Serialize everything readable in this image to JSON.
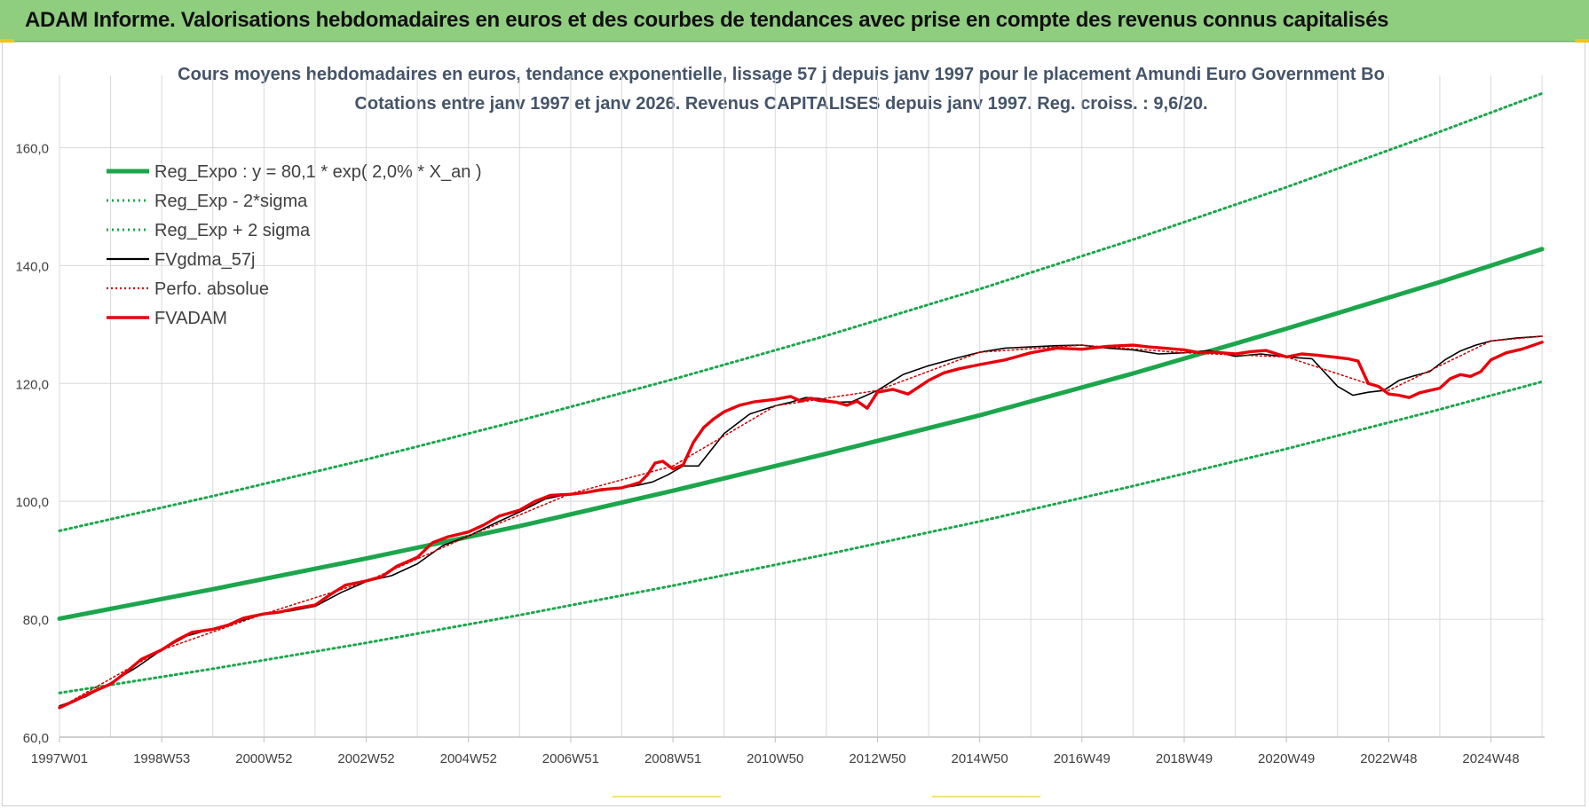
{
  "banner": {
    "title": "ADAM Informe. Valorisations hebdomadaires en euros et des courbes de tendances avec prise en compte des revenus connus capitalisés"
  },
  "colors": {
    "banner_bg": "#8fce7f",
    "reg_expo": "#1ca64c",
    "reg_bands": "#1ca64c",
    "fvgdma": "#000000",
    "perfo": "#d00000",
    "fvadam": "#e8000b",
    "grid": "#d9d9d9"
  },
  "chart_data": {
    "type": "line",
    "title": "Cours moyens hebdomadaires en euros, tendance exponentielle, lissage 57 j depuis janv 1997  pour le placement Amundi Euro Government Bo",
    "subtitle": "Cotations entre janv 1997 et janv 2026. Revenus CAPITALISES depuis janv 1997. Reg. croiss. : 9,6/20.",
    "xlabel": "",
    "ylabel": "",
    "ylim": [
      60,
      170
    ],
    "xlim": [
      1997.0,
      2026.05
    ],
    "y_ticks": [
      60,
      80,
      100,
      120,
      140,
      160
    ],
    "y_tick_labels": [
      "60,0",
      "80,0",
      "100,0",
      "120,0",
      "140,0",
      "160,0"
    ],
    "x_ticks": [
      1997.0,
      1999.0,
      2001.0,
      2003.0,
      2005.0,
      2007.0,
      2009.0,
      2011.0,
      2013.0,
      2015.0,
      2017.0,
      2019.0,
      2021.0,
      2023.0,
      2025.0
    ],
    "x_tick_labels": [
      "1997W01",
      "1998W53",
      "2000W52",
      "2002W52",
      "2004W52",
      "2006W51",
      "2008W51",
      "2010W50",
      "2012W50",
      "2014W50",
      "2016W49",
      "2018W49",
      "2020W49",
      "2022W48",
      "2024W48"
    ],
    "grid": true,
    "legend_position": "top-left",
    "series": [
      {
        "name": "Reg_Expo : y = 80,1 * exp( 2,0% *  X_an )",
        "style": "solid-thick",
        "x": [
          1997.0,
          2000.0,
          2003.0,
          2006.0,
          2009.0,
          2012.0,
          2015.0,
          2018.0,
          2021.0,
          2024.0,
          2026.0
        ],
        "values": [
          80.1,
          85.1,
          90.3,
          95.8,
          101.8,
          108.1,
          114.6,
          121.7,
          129.3,
          137.2,
          142.8
        ]
      },
      {
        "name": "Reg_Exp - 2*sigma",
        "style": "dotted",
        "x": [
          1997.0,
          2000.0,
          2003.0,
          2006.0,
          2009.0,
          2012.0,
          2015.0,
          2018.0,
          2021.0,
          2024.0,
          2026.0
        ],
        "values": [
          67.5,
          71.6,
          76.0,
          80.7,
          85.7,
          91.0,
          96.6,
          102.6,
          108.9,
          115.6,
          120.3
        ]
      },
      {
        "name": "Reg_Exp + 2 sigma",
        "style": "dotted",
        "x": [
          1997.0,
          2000.0,
          2003.0,
          2006.0,
          2009.0,
          2012.0,
          2015.0,
          2018.0,
          2021.0,
          2024.0,
          2026.0
        ],
        "values": [
          95.0,
          100.9,
          107.1,
          113.7,
          120.7,
          128.1,
          136.0,
          144.4,
          153.3,
          162.7,
          169.2
        ]
      },
      {
        "name": "FVgdma_57j",
        "style": "solid-thin",
        "x": [
          1997.0,
          1997.5,
          1998.0,
          1998.5,
          1999.0,
          1999.5,
          2000.0,
          2000.5,
          2001.0,
          2001.5,
          2002.0,
          2002.5,
          2003.0,
          2003.5,
          2004.0,
          2004.5,
          2005.0,
          2005.5,
          2006.0,
          2006.5,
          2007.0,
          2007.5,
          2008.0,
          2008.3,
          2008.6,
          2008.9,
          2009.2,
          2009.5,
          2010.0,
          2010.5,
          2011.0,
          2011.3,
          2011.6,
          2011.9,
          2012.2,
          2012.5,
          2013.0,
          2013.5,
          2014.0,
          2014.5,
          2015.0,
          2015.5,
          2016.0,
          2016.5,
          2017.0,
          2017.5,
          2018.0,
          2018.5,
          2019.0,
          2019.5,
          2020.0,
          2020.5,
          2021.0,
          2021.5,
          2022.0,
          2022.3,
          2022.6,
          2022.9,
          2023.2,
          2023.5,
          2023.8,
          2024.1,
          2024.4,
          2024.7,
          2025.0,
          2025.5,
          2026.0
        ],
        "values": [
          65.3,
          66.8,
          69.2,
          71.8,
          74.8,
          77.2,
          78.4,
          79.6,
          80.9,
          81.4,
          82.2,
          84.5,
          86.4,
          87.4,
          89.4,
          92.5,
          94.1,
          96.2,
          98.2,
          100.4,
          101.3,
          101.7,
          102.3,
          102.7,
          103.3,
          104.5,
          106.0,
          106.0,
          111.5,
          114.8,
          116.2,
          116.8,
          117.6,
          117.4,
          116.8,
          116.9,
          118.8,
          121.5,
          123.0,
          124.2,
          125.3,
          126.0,
          126.2,
          126.4,
          126.5,
          126.0,
          125.7,
          125.0,
          125.2,
          125.6,
          124.6,
          125.0,
          124.5,
          124.2,
          119.5,
          118.0,
          118.5,
          118.8,
          120.5,
          121.3,
          122.0,
          124.0,
          125.5,
          126.5,
          127.2,
          127.7,
          128.0
        ]
      },
      {
        "name": "Perfo. absolue",
        "style": "dotted-thin",
        "x": [
          1997.0,
          1999.0,
          2001.0,
          2003.0,
          2005.0,
          2007.0,
          2009.0,
          2011.0,
          2013.0,
          2015.0,
          2017.0,
          2019.0,
          2021.0,
          2023.0,
          2025.0,
          2026.0
        ],
        "values": [
          65.0,
          74.8,
          80.9,
          86.4,
          94.1,
          101.3,
          106.0,
          116.2,
          118.8,
          125.3,
          126.5,
          125.2,
          124.5,
          118.8,
          127.2,
          128.0
        ]
      },
      {
        "name": "FVADAM",
        "style": "solid-thick",
        "x": [
          1997.0,
          1997.3,
          1997.6,
          1998.0,
          1998.3,
          1998.6,
          1999.0,
          1999.3,
          1999.6,
          2000.0,
          2000.3,
          2000.6,
          2001.0,
          2001.3,
          2001.6,
          2002.0,
          2002.3,
          2002.6,
          2003.0,
          2003.3,
          2003.6,
          2004.0,
          2004.3,
          2004.6,
          2005.0,
          2005.3,
          2005.6,
          2006.0,
          2006.3,
          2006.6,
          2007.0,
          2007.3,
          2007.6,
          2008.0,
          2008.2,
          2008.35,
          2008.5,
          2008.65,
          2008.8,
          2009.0,
          2009.2,
          2009.4,
          2009.6,
          2009.8,
          2010.0,
          2010.3,
          2010.6,
          2011.0,
          2011.3,
          2011.5,
          2011.7,
          2011.85,
          2012.0,
          2012.2,
          2012.4,
          2012.6,
          2012.8,
          2013.0,
          2013.3,
          2013.6,
          2014.0,
          2014.3,
          2014.6,
          2015.0,
          2015.5,
          2016.0,
          2016.5,
          2017.0,
          2017.5,
          2018.0,
          2018.3,
          2018.6,
          2019.0,
          2019.3,
          2019.6,
          2020.0,
          2020.3,
          2020.6,
          2021.0,
          2021.3,
          2021.6,
          2022.0,
          2022.2,
          2022.4,
          2022.6,
          2022.8,
          2023.0,
          2023.2,
          2023.4,
          2023.6,
          2023.8,
          2024.0,
          2024.2,
          2024.4,
          2024.6,
          2024.8,
          2025.0,
          2025.3,
          2025.6,
          2026.0
        ],
        "values": [
          65.0,
          66.2,
          67.5,
          69.0,
          71.0,
          73.2,
          74.8,
          76.5,
          77.8,
          78.3,
          79.0,
          80.2,
          80.9,
          81.2,
          81.8,
          82.4,
          84.2,
          85.8,
          86.5,
          87.2,
          89.0,
          90.5,
          93.0,
          94.0,
          94.8,
          96.0,
          97.5,
          98.5,
          100.0,
          101.0,
          101.2,
          101.5,
          102.0,
          102.3,
          102.8,
          103.2,
          104.5,
          106.5,
          106.8,
          105.5,
          106.2,
          110.0,
          112.5,
          114.0,
          115.2,
          116.3,
          116.9,
          117.3,
          117.8,
          117.0,
          117.5,
          117.1,
          117.0,
          116.8,
          116.3,
          117.0,
          115.8,
          118.5,
          119.0,
          118.2,
          120.5,
          121.8,
          122.5,
          123.2,
          124.0,
          125.2,
          126.0,
          125.8,
          126.3,
          126.5,
          126.2,
          126.0,
          125.7,
          125.2,
          125.3,
          125.0,
          125.4,
          125.6,
          124.5,
          125.0,
          124.8,
          124.4,
          124.2,
          123.8,
          120.0,
          119.5,
          118.2,
          118.0,
          117.6,
          118.4,
          118.8,
          119.2,
          120.8,
          121.5,
          121.2,
          122.0,
          124.0,
          125.2,
          125.8,
          127.0
        ]
      }
    ]
  }
}
